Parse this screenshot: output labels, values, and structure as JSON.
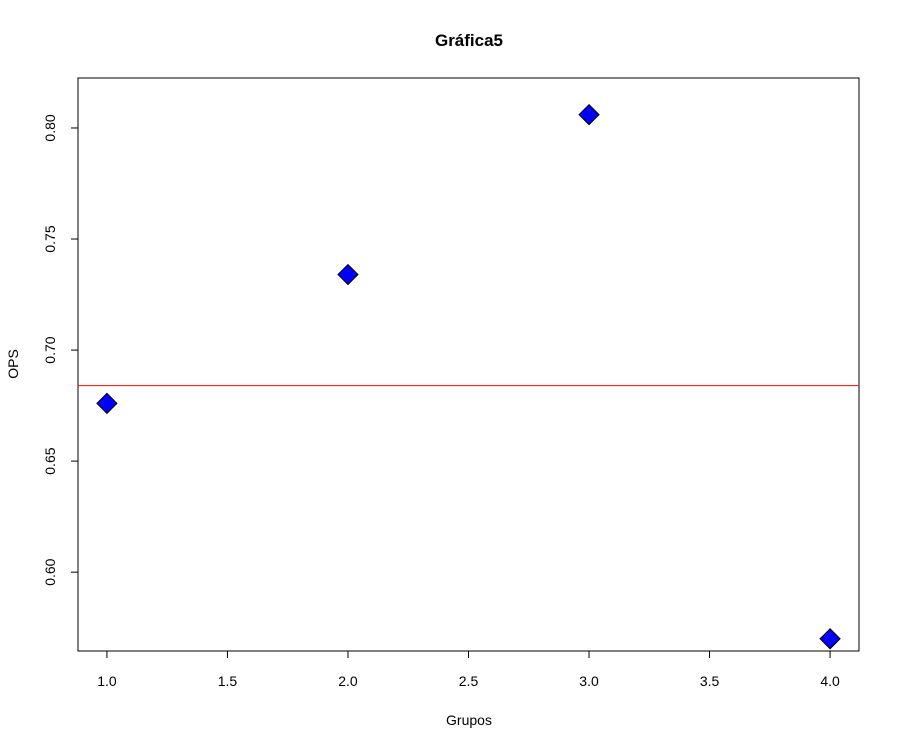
{
  "chart_data": {
    "type": "scatter",
    "title": "Gráfica5",
    "xlabel": "Grupos",
    "ylabel": "OPS",
    "xlim": [
      0.88,
      4.12
    ],
    "ylim": [
      0.5645,
      0.8225
    ],
    "x_ticks": [
      1.0,
      1.5,
      2.0,
      2.5,
      3.0,
      3.5,
      4.0
    ],
    "x_tick_labels": [
      "1.0",
      "1.5",
      "2.0",
      "2.5",
      "3.0",
      "3.5",
      "4.0"
    ],
    "y_ticks": [
      0.6,
      0.65,
      0.7,
      0.75,
      0.8
    ],
    "y_tick_labels": [
      "0.60",
      "0.65",
      "0.70",
      "0.75",
      "0.80"
    ],
    "series": [
      {
        "x": [
          1,
          2,
          3,
          4
        ],
        "y": [
          0.676,
          0.734,
          0.806,
          0.57
        ],
        "marker": "diamond",
        "color": "#0000ff",
        "edge_color": "#000000"
      }
    ],
    "hlines": [
      {
        "y": 0.684,
        "color": "#ff0000"
      }
    ],
    "grid": false,
    "legend": "none"
  }
}
